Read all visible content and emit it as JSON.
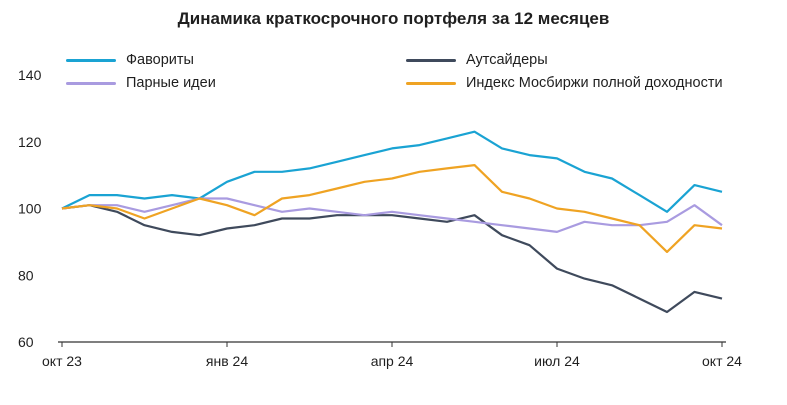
{
  "chart_data": {
    "type": "line",
    "title": "Динамика краткосрочного портфеля за 12 месяцев",
    "xlabel": "",
    "ylabel": "",
    "ylim": [
      60,
      140
    ],
    "yticks": [
      60,
      80,
      100,
      120,
      140
    ],
    "xticks": [
      {
        "label": "окт 23",
        "pos": 0
      },
      {
        "label": "янв 24",
        "pos": 3
      },
      {
        "label": "апр 24",
        "pos": 6
      },
      {
        "label": "июл 24",
        "pos": 9
      },
      {
        "label": "окт 24",
        "pos": 12
      }
    ],
    "legend_position": "top",
    "x": [
      0,
      0.5,
      1,
      1.5,
      2,
      2.5,
      3,
      3.5,
      4,
      4.5,
      5,
      5.5,
      6,
      6.5,
      7,
      7.5,
      8,
      8.5,
      9,
      9.5,
      10,
      10.5,
      11,
      11.5,
      12
    ],
    "series": [
      {
        "name": "Фавориты",
        "color": "#1aa3d3",
        "values": [
          100,
          104,
          104,
          103,
          104,
          103,
          108,
          111,
          111,
          112,
          114,
          116,
          118,
          119,
          121,
          123,
          118,
          116,
          115,
          111,
          109,
          104,
          99,
          107,
          105
        ]
      },
      {
        "name": "Аутсайдеры",
        "color": "#3f4a5c",
        "values": [
          100,
          101,
          99,
          95,
          93,
          92,
          94,
          95,
          97,
          97,
          98,
          98,
          98,
          97,
          96,
          98,
          92,
          89,
          82,
          79,
          77,
          73,
          69,
          75,
          73
        ]
      },
      {
        "name": "Парные идеи",
        "color": "#a99be0",
        "values": [
          100,
          101,
          101,
          99,
          101,
          103,
          103,
          101,
          99,
          100,
          99,
          98,
          99,
          98,
          97,
          96,
          95,
          94,
          93,
          96,
          95,
          95,
          96,
          101,
          95
        ]
      },
      {
        "name": "Индекс Мосбиржи полной доходности",
        "color": "#efa323",
        "values": [
          100,
          101,
          100,
          97,
          100,
          103,
          101,
          98,
          103,
          104,
          106,
          108,
          109,
          111,
          112,
          113,
          105,
          103,
          100,
          99,
          97,
          95,
          87,
          95,
          94
        ]
      }
    ]
  }
}
